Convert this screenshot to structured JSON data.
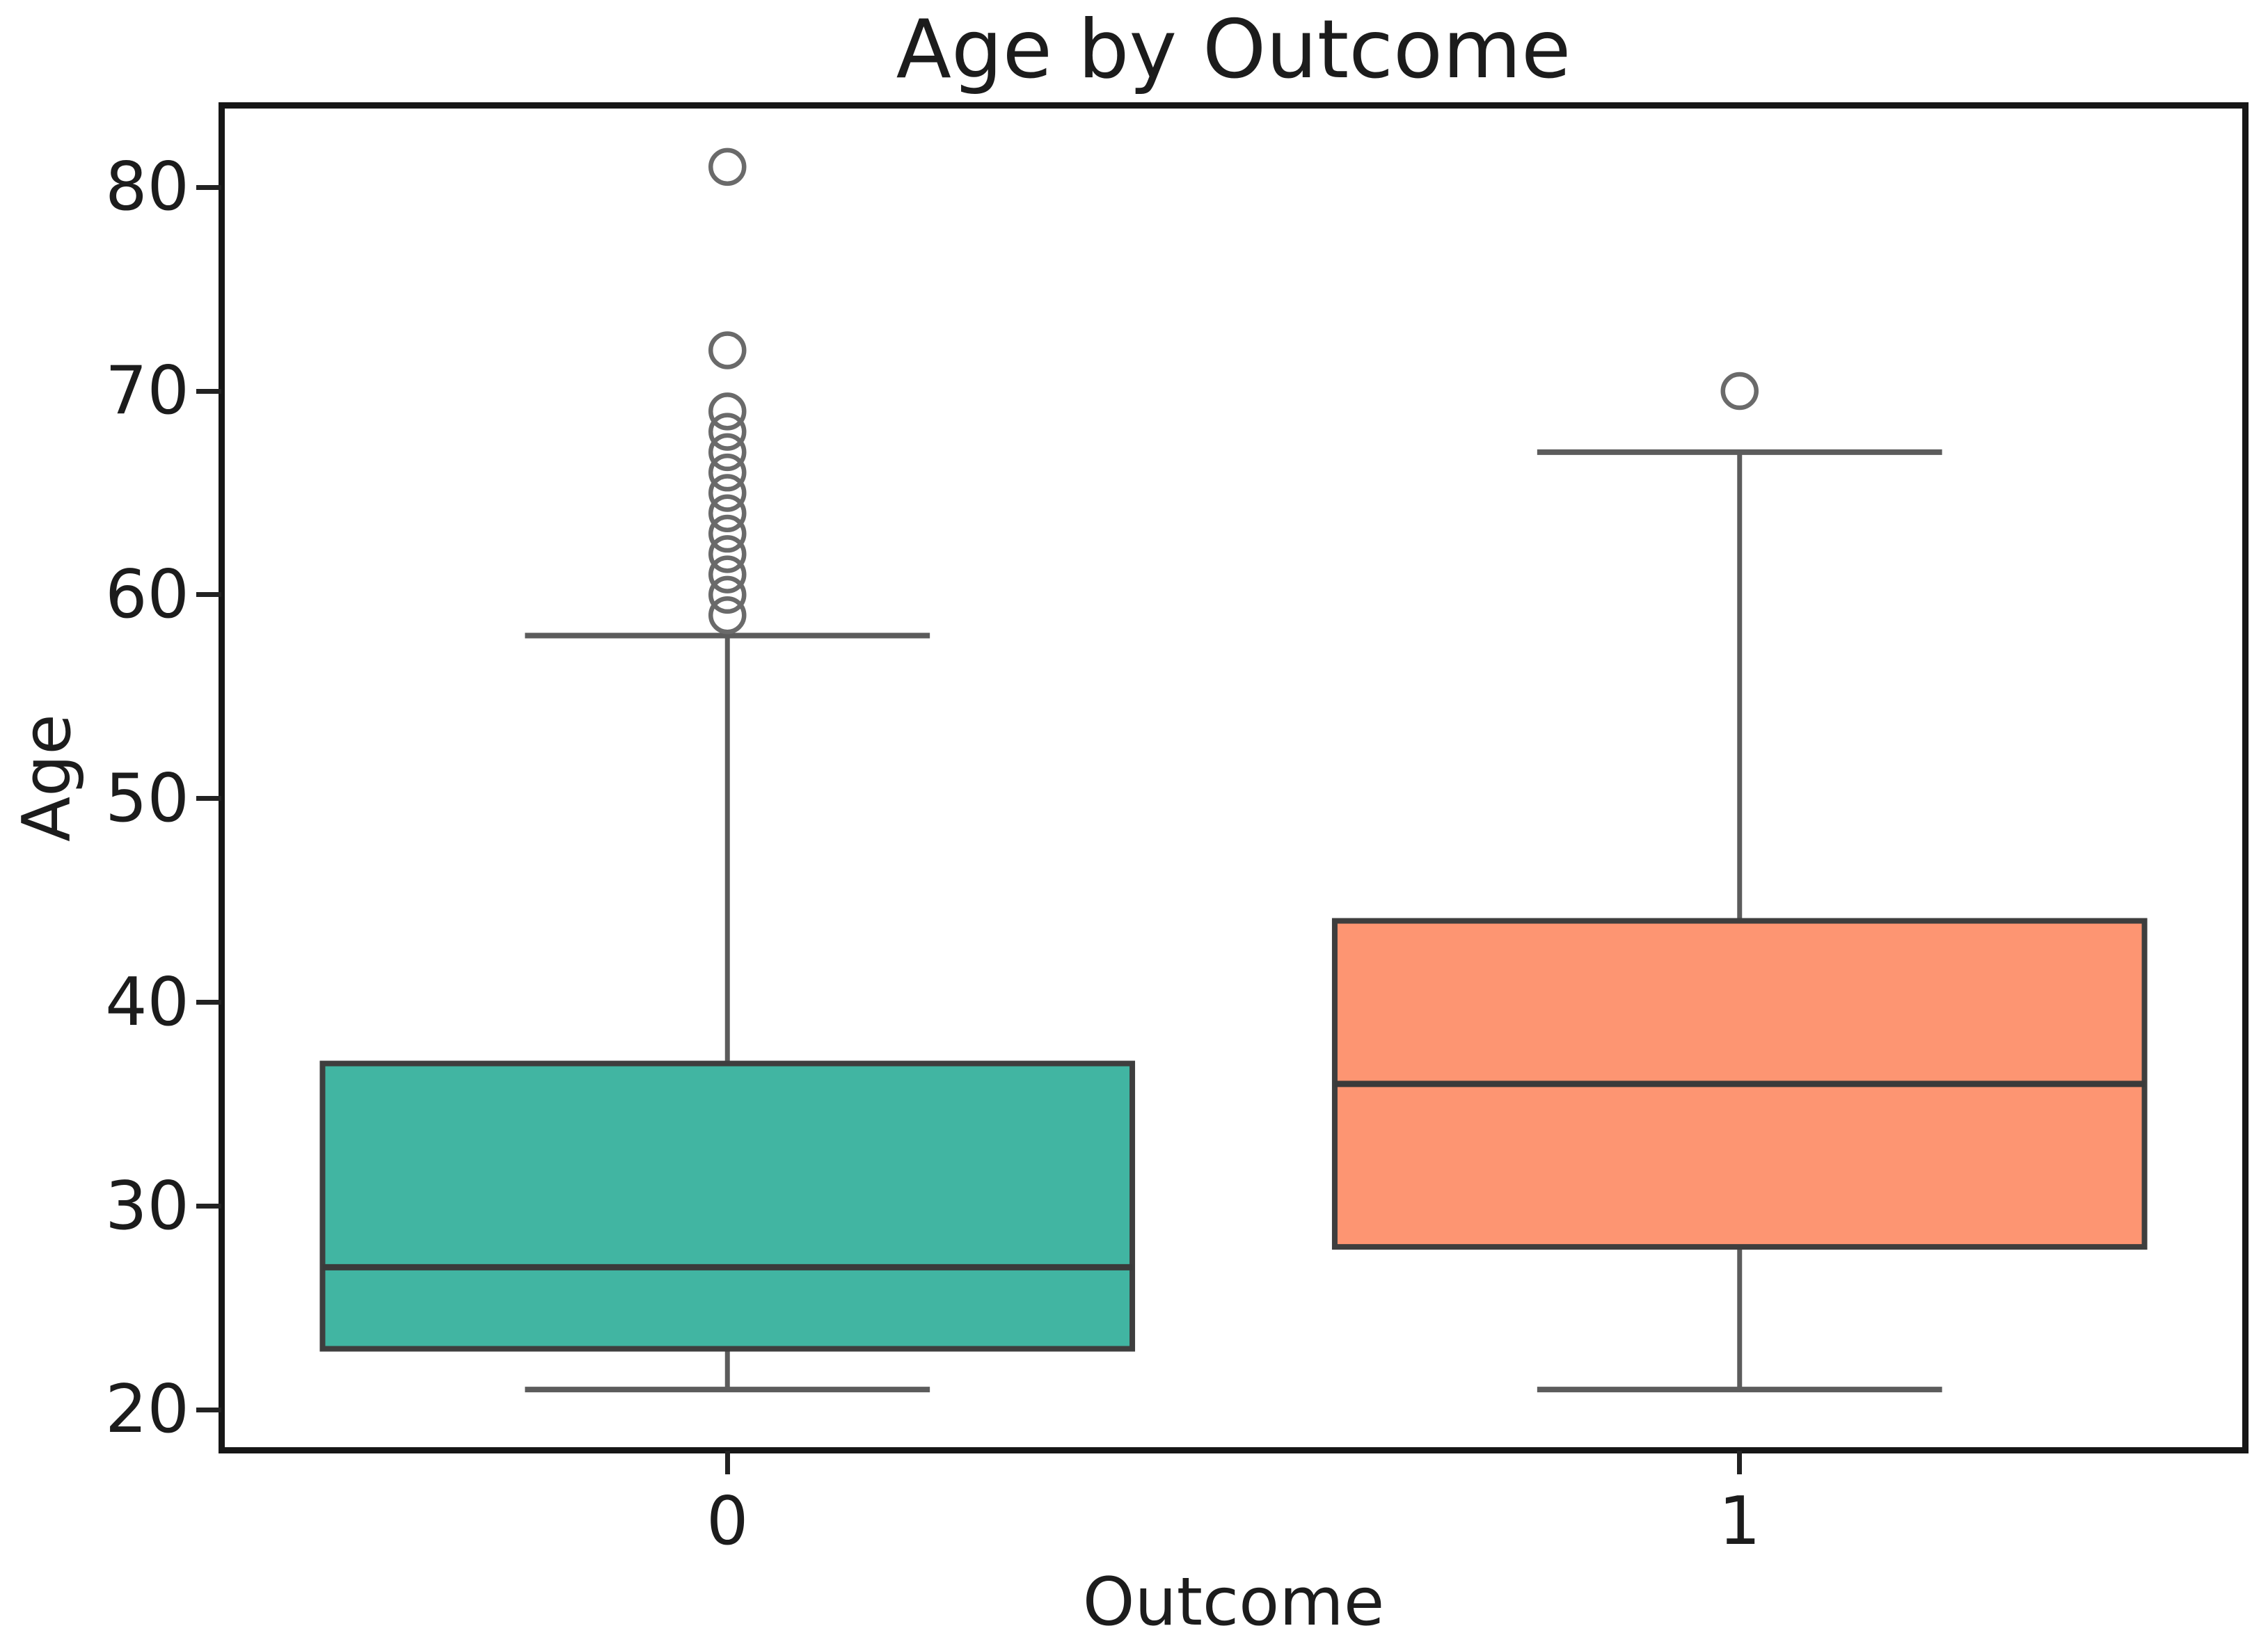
{
  "chart_data": {
    "type": "box",
    "title": "Age by Outcome",
    "xlabel": "Outcome",
    "ylabel": "Age",
    "categories": [
      "0",
      "1"
    ],
    "ylim": [
      18,
      84
    ],
    "yticks": [
      20,
      30,
      40,
      50,
      60,
      70,
      80
    ],
    "grid": false,
    "legend": "none",
    "series": [
      {
        "name": "0",
        "label": "Outcome 0",
        "fill_color": "#41b5a2",
        "whisker_low": 21,
        "q1": 23,
        "median": 27,
        "q3": 37,
        "whisker_high": 58,
        "outliers": [
          59,
          60,
          61,
          62,
          63,
          64,
          65,
          66,
          67,
          68,
          69,
          72,
          81
        ]
      },
      {
        "name": "1",
        "label": "Outcome 1",
        "fill_color": "#fd9572",
        "whisker_low": 21,
        "q1": 28,
        "median": 36,
        "q3": 44,
        "whisker_high": 67,
        "outliers": [
          70
        ]
      }
    ],
    "colors": {
      "box_edge": "#3e3e3e",
      "median_line": "#3a3a3a",
      "whisker": "#5c5c5c",
      "cap": "#5c5c5c",
      "outlier_stroke": "#6a6a6a",
      "axes_frame": "#161616",
      "tick": "#222222",
      "text": "#1c1c1c",
      "background": "#ffffff"
    }
  }
}
